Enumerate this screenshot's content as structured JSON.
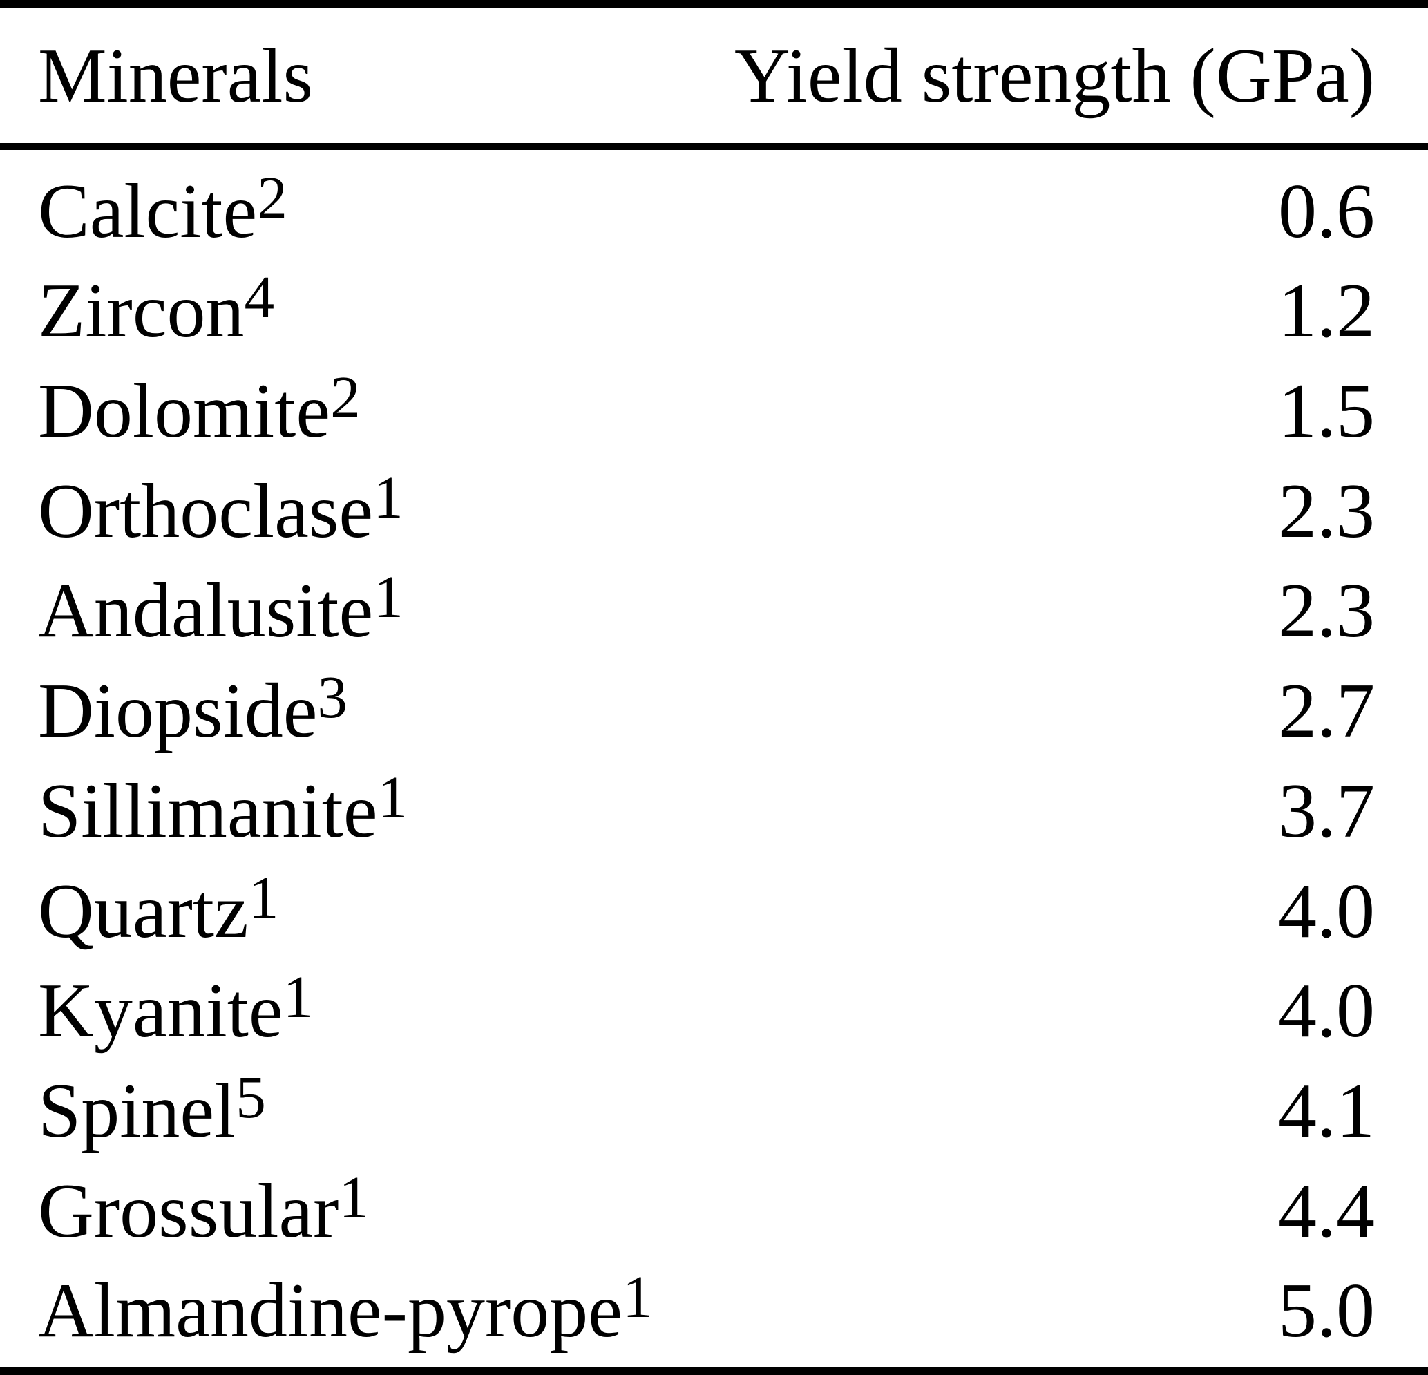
{
  "page": {
    "background_color": "#ffffff",
    "text_color": "#000000",
    "rule_color": "#000000"
  },
  "table": {
    "header": {
      "minerals": "Minerals",
      "yield": "Yield strength (GPa)"
    },
    "rows": [
      {
        "name": "Calcite",
        "sup": "2",
        "value": "0.6"
      },
      {
        "name": "Zircon",
        "sup": "4",
        "value": "1.2"
      },
      {
        "name": "Dolomite",
        "sup": "2",
        "value": "1.5"
      },
      {
        "name": "Orthoclase",
        "sup": "1",
        "value": "2.3"
      },
      {
        "name": "Andalusite",
        "sup": "1",
        "value": "2.3"
      },
      {
        "name": "Diopside",
        "sup": "3",
        "value": "2.7"
      },
      {
        "name": "Sillimanite",
        "sup": "1",
        "value": "3.7"
      },
      {
        "name": "Quartz",
        "sup": "1",
        "value": "4.0"
      },
      {
        "name": "Kyanite",
        "sup": "1",
        "value": "4.0"
      },
      {
        "name": "Spinel",
        "sup": "5",
        "value": "4.1"
      },
      {
        "name": "Grossular",
        "sup": "1",
        "value": "4.4"
      },
      {
        "name": "Almandine-pyrope",
        "sup": "1",
        "value": "5.0"
      }
    ]
  }
}
